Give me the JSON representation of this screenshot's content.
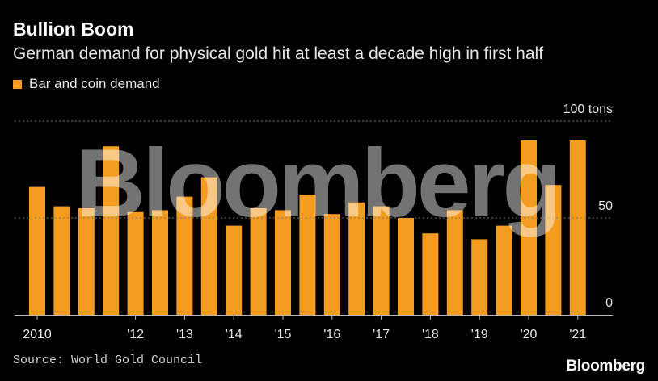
{
  "title": "Bullion Boom",
  "subtitle": "German demand for physical gold hit at least a decade high in first half",
  "source": "Source: World Gold Council",
  "brand": "Bloomberg",
  "watermark": "Bloomberg",
  "colors": {
    "bar": "#f39c1f",
    "background": "#000000",
    "grid": "#777777"
  },
  "chart_data": {
    "type": "bar",
    "legend": [
      "Bar and coin demand"
    ],
    "unit_label": "100 tons",
    "y_ticks": [
      {
        "value": 100,
        "label": "100 tons"
      },
      {
        "value": 50,
        "label": "50"
      },
      {
        "value": 0,
        "label": "0"
      }
    ],
    "ylim": [
      0,
      100
    ],
    "x_ticks": [
      {
        "bar_index": 0,
        "label": "2010"
      },
      {
        "bar_index": 4,
        "label": "'12"
      },
      {
        "bar_index": 6,
        "label": "'13"
      },
      {
        "bar_index": 8,
        "label": "'14"
      },
      {
        "bar_index": 10,
        "label": "'15"
      },
      {
        "bar_index": 12,
        "label": "'16"
      },
      {
        "bar_index": 14,
        "label": "'17"
      },
      {
        "bar_index": 16,
        "label": "'18"
      },
      {
        "bar_index": 18,
        "label": "'19"
      },
      {
        "bar_index": 20,
        "label": "'20"
      },
      {
        "bar_index": 22,
        "label": "'21"
      }
    ],
    "series": [
      {
        "name": "Bar and coin demand",
        "values": [
          66,
          56,
          55,
          87,
          53,
          54,
          61,
          71,
          46,
          55,
          54,
          62,
          52,
          58,
          56,
          50,
          42,
          54,
          39,
          46,
          90,
          67,
          90
        ]
      }
    ]
  }
}
